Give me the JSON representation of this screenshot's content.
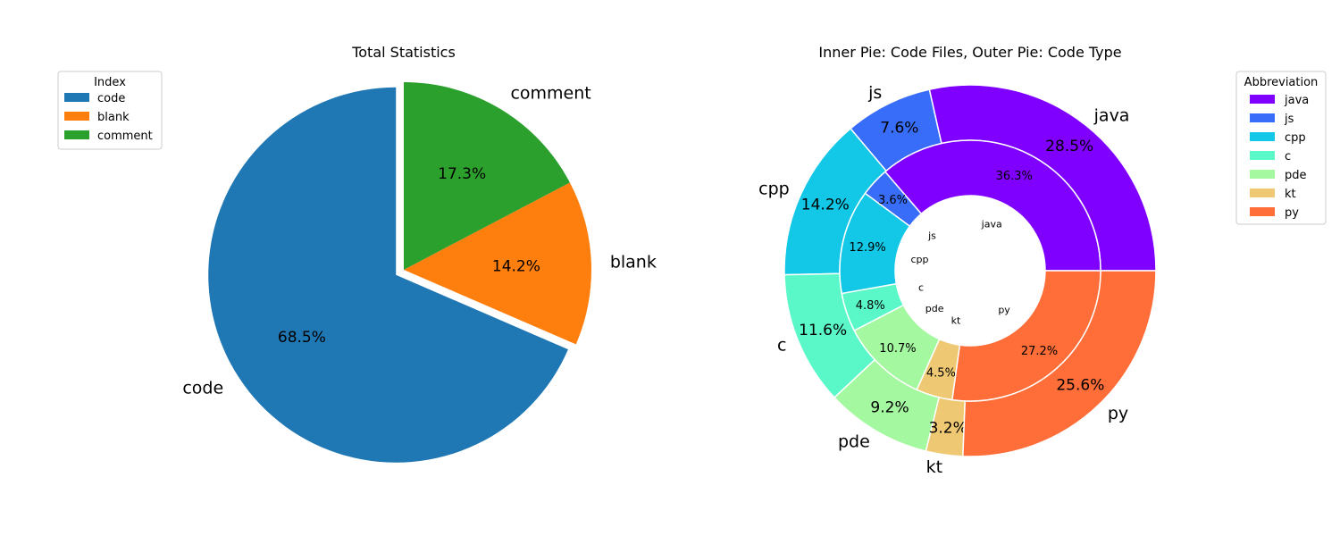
{
  "chart_data": [
    {
      "type": "pie",
      "title": "Total Statistics",
      "categories": [
        "code",
        "blank",
        "comment"
      ],
      "values": [
        68.5,
        14.2,
        17.3
      ],
      "percent_labels": [
        "68.5%",
        "14.2%",
        "17.3%"
      ],
      "colors": [
        "#1f77b4",
        "#ff7f0e",
        "#2ca02c"
      ],
      "exploded": "code",
      "legend": {
        "title": "Index",
        "placement": "upper-left",
        "entries": [
          "code",
          "blank",
          "comment"
        ]
      }
    },
    {
      "type": "pie",
      "title": "Inner Pie: Code Files, Outer Pie: Code Type",
      "inner_ring": {
        "categories": [
          "java",
          "js",
          "cpp",
          "c",
          "pde",
          "kt",
          "py"
        ],
        "values": [
          36.3,
          3.6,
          12.9,
          4.8,
          10.7,
          4.5,
          27.2
        ],
        "percent_labels": [
          "36.3%",
          "3.6%",
          "12.9%",
          "4.8%",
          "10.7%",
          "4.5%",
          "27.2%"
        ]
      },
      "outer_ring": {
        "categories": [
          "java",
          "js",
          "cpp",
          "c",
          "pde",
          "kt",
          "py"
        ],
        "values": [
          28.5,
          7.6,
          14.2,
          11.6,
          9.2,
          3.2,
          25.6
        ],
        "percent_labels": [
          "28.5%",
          "7.6%",
          "14.2%",
          "11.6%",
          "9.2%",
          "3.2%",
          "25.6%"
        ]
      },
      "colors": [
        "#8000ff",
        "#386df9",
        "#12c8e6",
        "#5af8c8",
        "#a4f89f",
        "#eec872",
        "#ff6d38"
      ],
      "legend": {
        "title": "Abbreviation",
        "placement": "upper-right",
        "entries": [
          "java",
          "js",
          "cpp",
          "c",
          "pde",
          "kt",
          "py"
        ]
      }
    }
  ]
}
